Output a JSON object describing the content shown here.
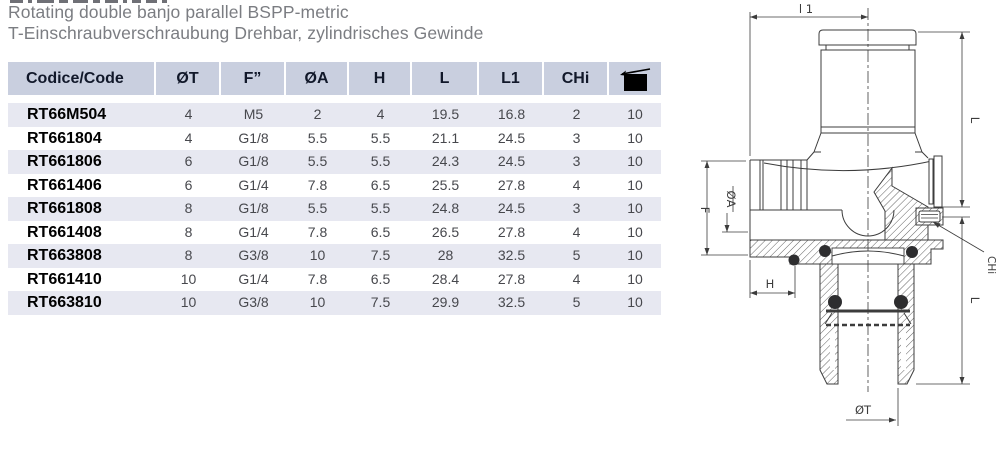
{
  "header": {
    "title_en": "Rotating double banjo parallel BSPP-metric",
    "title_de": "T-Einschraubverschraubung Drehbar, zylindrisches Gewinde"
  },
  "table": {
    "columns": [
      "Codice/Code",
      "ØT",
      "F”",
      "ØA",
      "H",
      "L",
      "L1",
      "CHi"
    ],
    "package_icon": "package-icon",
    "rows": [
      [
        "RT66M504",
        "4",
        "M5",
        "2",
        "4",
        "19.5",
        "16.8",
        "2",
        "10"
      ],
      [
        "RT661804",
        "4",
        "G1/8",
        "5.5",
        "5.5",
        "21.1",
        "24.5",
        "3",
        "10"
      ],
      [
        "RT661806",
        "6",
        "G1/8",
        "5.5",
        "5.5",
        "24.3",
        "24.5",
        "3",
        "10"
      ],
      [
        "RT661406",
        "6",
        "G1/4",
        "7.8",
        "6.5",
        "25.5",
        "27.8",
        "4",
        "10"
      ],
      [
        "RT661808",
        "8",
        "G1/8",
        "5.5",
        "5.5",
        "24.8",
        "24.5",
        "3",
        "10"
      ],
      [
        "RT661408",
        "8",
        "G1/4",
        "7.8",
        "6.5",
        "26.5",
        "27.8",
        "4",
        "10"
      ],
      [
        "RT663808",
        "8",
        "G3/8",
        "10",
        "7.5",
        "28",
        "32.5",
        "5",
        "10"
      ],
      [
        "RT661410",
        "10",
        "G1/4",
        "7.8",
        "6.5",
        "28.4",
        "27.8",
        "4",
        "10"
      ],
      [
        "RT663810",
        "10",
        "G3/8",
        "10",
        "7.5",
        "29.9",
        "32.5",
        "5",
        "10"
      ]
    ]
  },
  "drawing": {
    "labels": {
      "l1": "l 1",
      "l_upper": "L",
      "l_lower": "L",
      "f": "F",
      "oa": "ØA",
      "h": "H",
      "ot": "ØT",
      "chi": "CHi"
    }
  },
  "colors": {
    "header_bg": "#c9cfdf",
    "row_alt_bg": "#e7e8f1",
    "title_gray": "#7b7d82",
    "header_text": "#11182a",
    "value_gray": "#47484d",
    "drawing_line": "#3c3c3c"
  }
}
